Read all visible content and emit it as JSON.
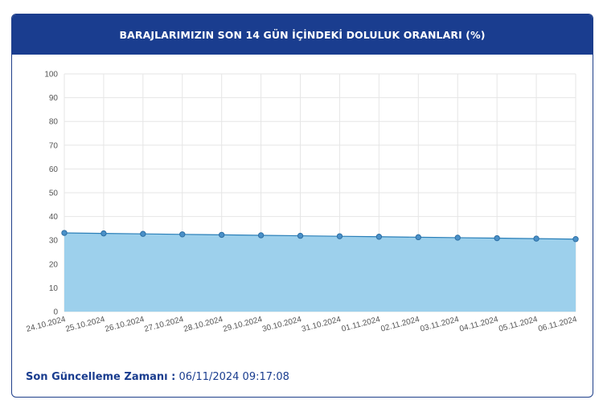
{
  "header": {
    "title": "BARAJLARIMIZIN SON 14 GÜN İÇİNDEKİ DOLULUK ORANLARI (%)"
  },
  "footer": {
    "label": "Son Güncelleme Zamanı :",
    "value": "06/11/2024 09:17:08"
  },
  "colors": {
    "header_bg": "#1a3d8f",
    "fill": "#9dd0ec",
    "line": "#2a7fb8",
    "point": "#4a90c8"
  },
  "chart_data": {
    "type": "area",
    "title": "BARAJLARIMIZIN SON 14 GÜN İÇİNDEKİ DOLULUK ORANLARI (%)",
    "xlabel": "",
    "ylabel": "",
    "ylim": [
      0,
      100
    ],
    "yticks": [
      0,
      10,
      20,
      30,
      40,
      50,
      60,
      70,
      80,
      90,
      100
    ],
    "grid": true,
    "categories": [
      "24.10.2024",
      "25.10.2024",
      "26.10.2024",
      "27.10.2024",
      "28.10.2024",
      "29.10.2024",
      "30.10.2024",
      "31.10.2024",
      "01.11.2024",
      "02.11.2024",
      "03.11.2024",
      "04.11.2024",
      "05.11.2024",
      "06.11.2024"
    ],
    "values": [
      33.1,
      32.9,
      32.7,
      32.5,
      32.3,
      32.1,
      31.9,
      31.7,
      31.5,
      31.3,
      31.1,
      30.9,
      30.7,
      30.5
    ]
  }
}
